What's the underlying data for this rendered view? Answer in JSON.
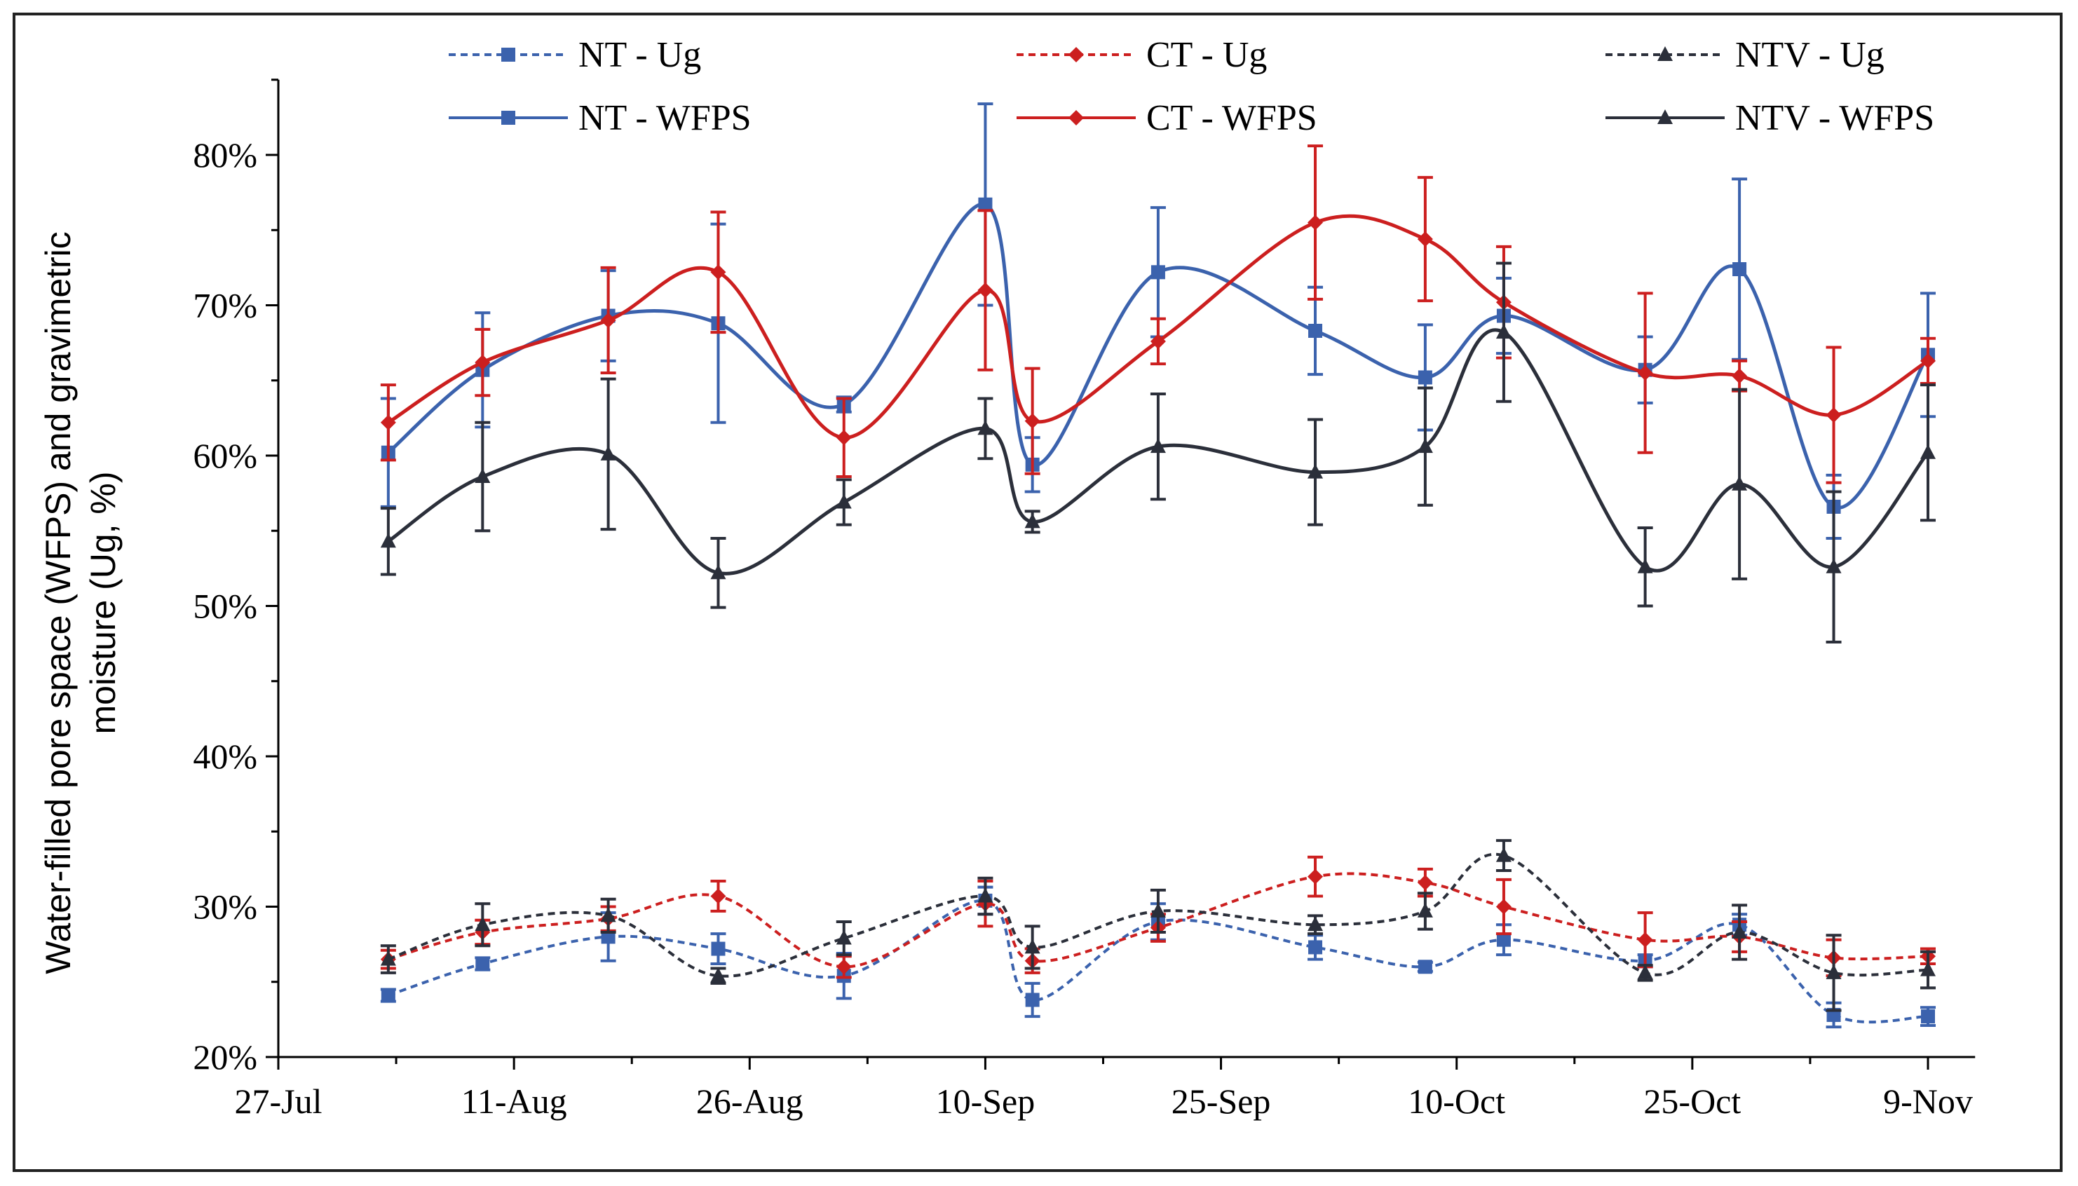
{
  "chart_data": {
    "type": "line",
    "title": "",
    "xlabel": "",
    "ylabel_lines": [
      "Water-filled pore space (WFPS) and gravimetric",
      "moisture (Ug, %)"
    ],
    "ylim": [
      20,
      85
    ],
    "yticks": [
      20,
      30,
      40,
      50,
      60,
      70,
      80
    ],
    "ytick_labels": [
      "20%",
      "30%",
      "40%",
      "50%",
      "60%",
      "70%",
      "80%"
    ],
    "xlim_days": [
      0,
      108
    ],
    "xticks_days": [
      0,
      15,
      30,
      45,
      60,
      75,
      90,
      105
    ],
    "xtick_labels": [
      "27-Jul",
      "11-Aug",
      "26-Aug",
      "10-Sep",
      "25-Sep",
      "10-Oct",
      "25-Oct",
      "9-Nov"
    ],
    "x_days": [
      7,
      13,
      21,
      28,
      36,
      45,
      48,
      56,
      66,
      73,
      78,
      87,
      93,
      99,
      105
    ],
    "legend_position": "top",
    "series": [
      {
        "name": "NT - Ug",
        "color": "#3b62ad",
        "dashed": true,
        "marker": "square",
        "values": [
          24.1,
          26.2,
          28.0,
          27.2,
          25.4,
          30.4,
          23.8,
          29.0,
          27.3,
          26.0,
          27.8,
          26.4,
          28.8,
          22.8,
          22.7
        ],
        "errors": [
          0.4,
          0.4,
          1.6,
          1.0,
          1.5,
          0.9,
          1.1,
          1.2,
          0.8,
          0.3,
          1.0,
          0.4,
          0.7,
          0.8,
          0.6
        ]
      },
      {
        "name": "CT - Ug",
        "color": "#cc1f1f",
        "dashed": true,
        "marker": "diamond",
        "values": [
          26.5,
          28.3,
          29.2,
          30.7,
          26.0,
          30.2,
          26.4,
          28.6,
          32.0,
          31.6,
          30.0,
          27.8,
          28.0,
          26.6,
          26.7
        ],
        "errors": [
          0.6,
          0.8,
          0.8,
          1.0,
          0.7,
          1.5,
          0.8,
          0.9,
          1.3,
          0.9,
          1.8,
          1.8,
          1.0,
          1.2,
          0.5
        ]
      },
      {
        "name": "NTV - Ug",
        "color": "#2b2f3a",
        "dashed": true,
        "marker": "triangle",
        "values": [
          26.5,
          28.8,
          29.4,
          25.4,
          27.9,
          30.7,
          27.3,
          29.7,
          28.8,
          29.7,
          33.4,
          25.6,
          28.3,
          25.6,
          25.8
        ],
        "errors": [
          0.9,
          1.4,
          1.1,
          0.5,
          1.1,
          1.2,
          1.4,
          1.4,
          0.6,
          1.2,
          1.0,
          0.5,
          1.8,
          2.5,
          1.2
        ]
      },
      {
        "name": "NT - WFPS",
        "color": "#3b62ad",
        "dashed": false,
        "marker": "square",
        "values": [
          60.2,
          65.7,
          69.3,
          68.8,
          63.4,
          76.7,
          59.4,
          72.2,
          68.3,
          65.2,
          69.3,
          65.7,
          72.4,
          56.6,
          66.7
        ],
        "errors": [
          3.6,
          3.8,
          3.0,
          6.6,
          0.5,
          6.7,
          1.8,
          4.3,
          2.9,
          3.5,
          2.5,
          2.2,
          6.0,
          2.1,
          4.1
        ]
      },
      {
        "name": "CT - WFPS",
        "color": "#cc1f1f",
        "dashed": false,
        "marker": "diamond",
        "values": [
          62.2,
          66.2,
          69.0,
          72.2,
          61.2,
          71.0,
          62.3,
          67.6,
          75.5,
          74.4,
          70.2,
          65.5,
          65.3,
          62.7,
          66.3
        ],
        "errors": [
          2.5,
          2.2,
          3.5,
          4.0,
          2.6,
          5.3,
          3.5,
          1.5,
          5.1,
          4.1,
          3.7,
          5.3,
          1.0,
          4.5,
          1.5
        ]
      },
      {
        "name": "NTV - WFPS",
        "color": "#2b2f3a",
        "dashed": false,
        "marker": "triangle",
        "values": [
          54.3,
          58.6,
          60.1,
          52.2,
          56.9,
          61.8,
          55.6,
          60.6,
          58.9,
          60.6,
          68.2,
          52.6,
          58.1,
          52.6,
          60.2
        ],
        "errors": [
          2.2,
          3.6,
          5.0,
          2.3,
          1.5,
          2.0,
          0.7,
          3.5,
          3.5,
          3.9,
          4.6,
          2.6,
          6.3,
          5.0,
          4.5
        ]
      }
    ]
  }
}
